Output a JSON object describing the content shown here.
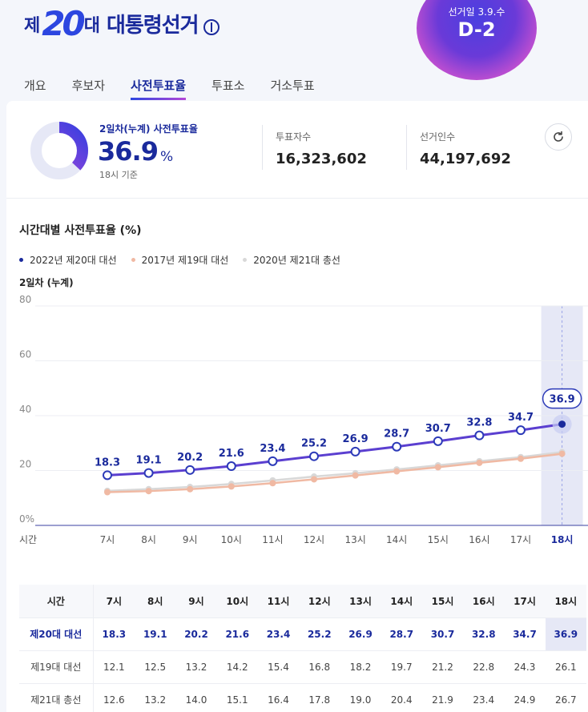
{
  "header": {
    "logo_prefix": "제",
    "logo_number": "20",
    "logo_suffix": "대",
    "logo_name": "대통령선거",
    "election_date": "선거일 3.9.수",
    "dday": "D-2"
  },
  "tabs": [
    "개요",
    "후보자",
    "사전투표율",
    "투표소",
    "거소투표"
  ],
  "active_tab": "사전투표율",
  "summary": {
    "label": "2일차(누계) 사전투표율",
    "value": "36.9",
    "unit": "%",
    "time": "18시 기준",
    "voters_label": "투표자수",
    "voters_value": "16,323,602",
    "electors_label": "선거인수",
    "electors_value": "44,197,692",
    "donut_fraction": 0.369
  },
  "chart_title": "시간대별 사전투표율 (%)",
  "day_label": "2일차 (누계)",
  "chart_data": {
    "type": "line",
    "categories": [
      "7시",
      "8시",
      "9시",
      "10시",
      "11시",
      "12시",
      "13시",
      "14시",
      "15시",
      "16시",
      "17시",
      "18시"
    ],
    "x_axis_label": "시간",
    "ylim": [
      0,
      80
    ],
    "yticks": [
      "80",
      "60",
      "40",
      "20",
      "0%"
    ],
    "series": [
      {
        "name": "2022년 제20대 대선",
        "color": "#5b3fd0",
        "values": [
          18.3,
          19.1,
          20.2,
          21.6,
          23.4,
          25.2,
          26.9,
          28.7,
          30.7,
          32.8,
          34.7,
          36.9
        ]
      },
      {
        "name": "2017년 제19대 대선",
        "color": "#f0b9a3",
        "values": [
          12.1,
          12.5,
          13.2,
          14.2,
          15.4,
          16.8,
          18.2,
          19.7,
          21.2,
          22.8,
          24.3,
          26.1
        ]
      },
      {
        "name": "2020년 제21대 총선",
        "color": "#d8d8d8",
        "values": [
          12.6,
          13.2,
          14.0,
          15.1,
          16.4,
          17.8,
          19.0,
          20.4,
          21.9,
          23.4,
          24.9,
          26.7
        ]
      }
    ],
    "highlight_category": "18시",
    "legend_position": "top-left"
  },
  "table": {
    "header_label": "시간",
    "rows": [
      {
        "label": "제20대 대선",
        "values": [
          "18.3",
          "19.1",
          "20.2",
          "21.6",
          "23.4",
          "25.2",
          "26.9",
          "28.7",
          "30.7",
          "32.8",
          "34.7",
          "36.9"
        ]
      },
      {
        "label": "제19대 대선",
        "values": [
          "12.1",
          "12.5",
          "13.2",
          "14.2",
          "15.4",
          "16.8",
          "18.2",
          "19.7",
          "21.2",
          "22.8",
          "24.3",
          "26.1"
        ]
      },
      {
        "label": "제21대 총선",
        "values": [
          "12.6",
          "13.2",
          "14.0",
          "15.1",
          "16.4",
          "17.8",
          "19.0",
          "20.4",
          "21.9",
          "23.4",
          "24.9",
          "26.7"
        ]
      }
    ]
  }
}
